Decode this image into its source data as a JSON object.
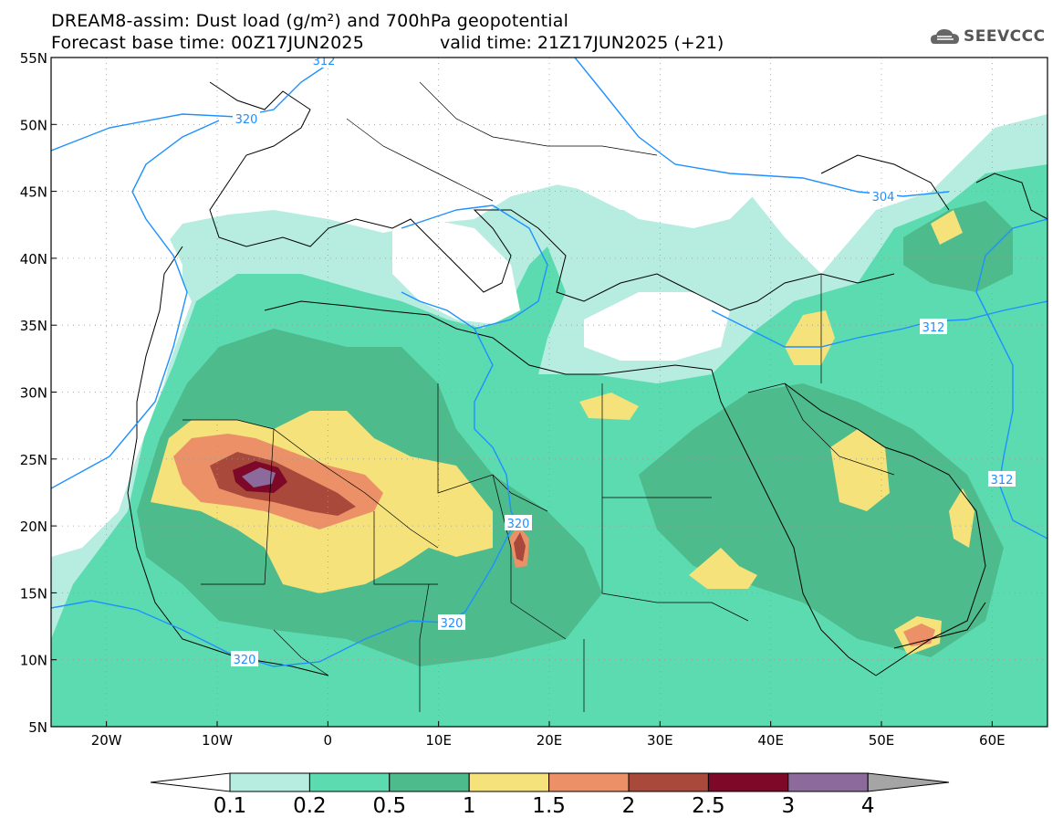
{
  "header": {
    "title_line1": "DREAM8-assim: Dust load (g/m²) and 700hPa geopotential",
    "title_line2_left": "Forecast base time: 00Z17JUN2025",
    "title_line2_right": "valid time: 21Z17JUN2025 (+21)",
    "logo_text": "SEEVCCC"
  },
  "map": {
    "lat_labels": [
      "55N",
      "50N",
      "45N",
      "40N",
      "35N",
      "30N",
      "25N",
      "20N",
      "15N",
      "10N",
      "5N"
    ],
    "lon_labels": [
      "20W",
      "10W",
      "0",
      "10E",
      "20E",
      "30E",
      "40E",
      "50E",
      "60E"
    ],
    "contour_labels": [
      "320",
      "312",
      "304",
      "320",
      "320",
      "320",
      "312",
      "312"
    ],
    "colors": {
      "contour": "#1e90ff",
      "coast": "#000000",
      "grid": "#888888"
    }
  },
  "colorbar": {
    "levels": [
      "0.1",
      "0.2",
      "0.5",
      "1",
      "1.5",
      "2",
      "2.5",
      "3",
      "4"
    ],
    "colors": [
      "#ffffff",
      "#b7ede1",
      "#5cdbb0",
      "#4dbb8c",
      "#f5e27a",
      "#eb9067",
      "#a8493c",
      "#7d0828",
      "#8c6a9c",
      "#a5a5a5"
    ]
  }
}
